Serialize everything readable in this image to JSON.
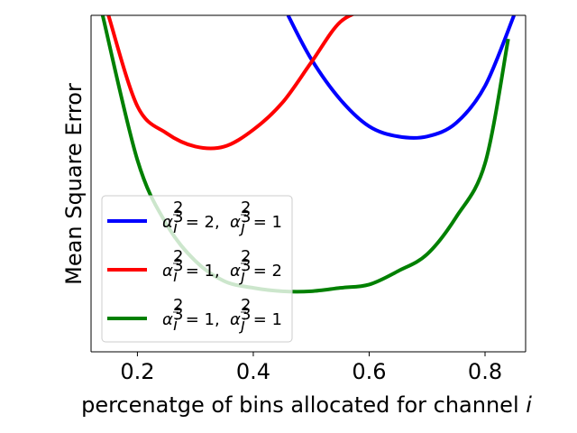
{
  "chart_data": {
    "type": "line",
    "title": "",
    "xlabel": "percenatge of bins allocated for channel i",
    "ylabel": "Mean Square Error",
    "xlim": [
      0.12,
      0.87
    ],
    "ylim": [
      0.0,
      1.0
    ],
    "y_ticks_shown": false,
    "x_ticks": [
      0.2,
      0.4,
      0.6,
      0.8
    ],
    "x_tick_labels": [
      "0.2",
      "0.4",
      "0.6",
      "0.8"
    ],
    "grid": false,
    "legend_position": "lower-left",
    "series": [
      {
        "name": "α_i^(2/3) = 2, α_j^(2/3) = 1",
        "color": "#0000ff",
        "x": [
          0.46,
          0.5,
          0.55,
          0.6,
          0.65,
          0.7,
          0.75,
          0.8,
          0.85
        ],
        "y": [
          1.0,
          0.87,
          0.75,
          0.67,
          0.64,
          0.64,
          0.68,
          0.79,
          1.0
        ]
      },
      {
        "name": "α_i^(2/3) = 1, α_j^(2/3) = 2",
        "color": "#ff0000",
        "x": [
          0.15,
          0.2,
          0.25,
          0.3,
          0.35,
          0.4,
          0.45,
          0.5,
          0.55,
          0.6
        ],
        "y": [
          1.0,
          0.73,
          0.65,
          0.61,
          0.61,
          0.66,
          0.74,
          0.86,
          0.98,
          1.02
        ]
      },
      {
        "name": "α_i^(2/3) = 1, α_j^(2/3) = 1",
        "color": "#008000",
        "x": [
          0.14,
          0.2,
          0.25,
          0.3,
          0.35,
          0.4,
          0.45,
          0.5,
          0.55,
          0.6,
          0.65,
          0.7,
          0.75,
          0.8,
          0.84
        ],
        "y": [
          1.0,
          0.57,
          0.38,
          0.27,
          0.21,
          0.19,
          0.18,
          0.18,
          0.19,
          0.2,
          0.24,
          0.29,
          0.4,
          0.56,
          0.93
        ]
      }
    ]
  },
  "legend": {
    "entries": [
      {
        "var1": "α",
        "sub1": "i",
        "eq1": " = 2, ",
        "var2": "α",
        "sub2": "j",
        "eq2": " = 1",
        "sup": "2",
        "supden": "3"
      },
      {
        "var1": "α",
        "sub1": "i",
        "eq1": " = 1, ",
        "var2": "α",
        "sub2": "j",
        "eq2": " = 2",
        "sup": "2",
        "supden": "3"
      },
      {
        "var1": "α",
        "sub1": "i",
        "eq1": " = 1, ",
        "var2": "α",
        "sub2": "j",
        "eq2": " = 1",
        "sup": "2",
        "supden": "3"
      }
    ]
  },
  "xlabel_main": "percenatge of bins allocated for channel ",
  "xlabel_var": "i"
}
